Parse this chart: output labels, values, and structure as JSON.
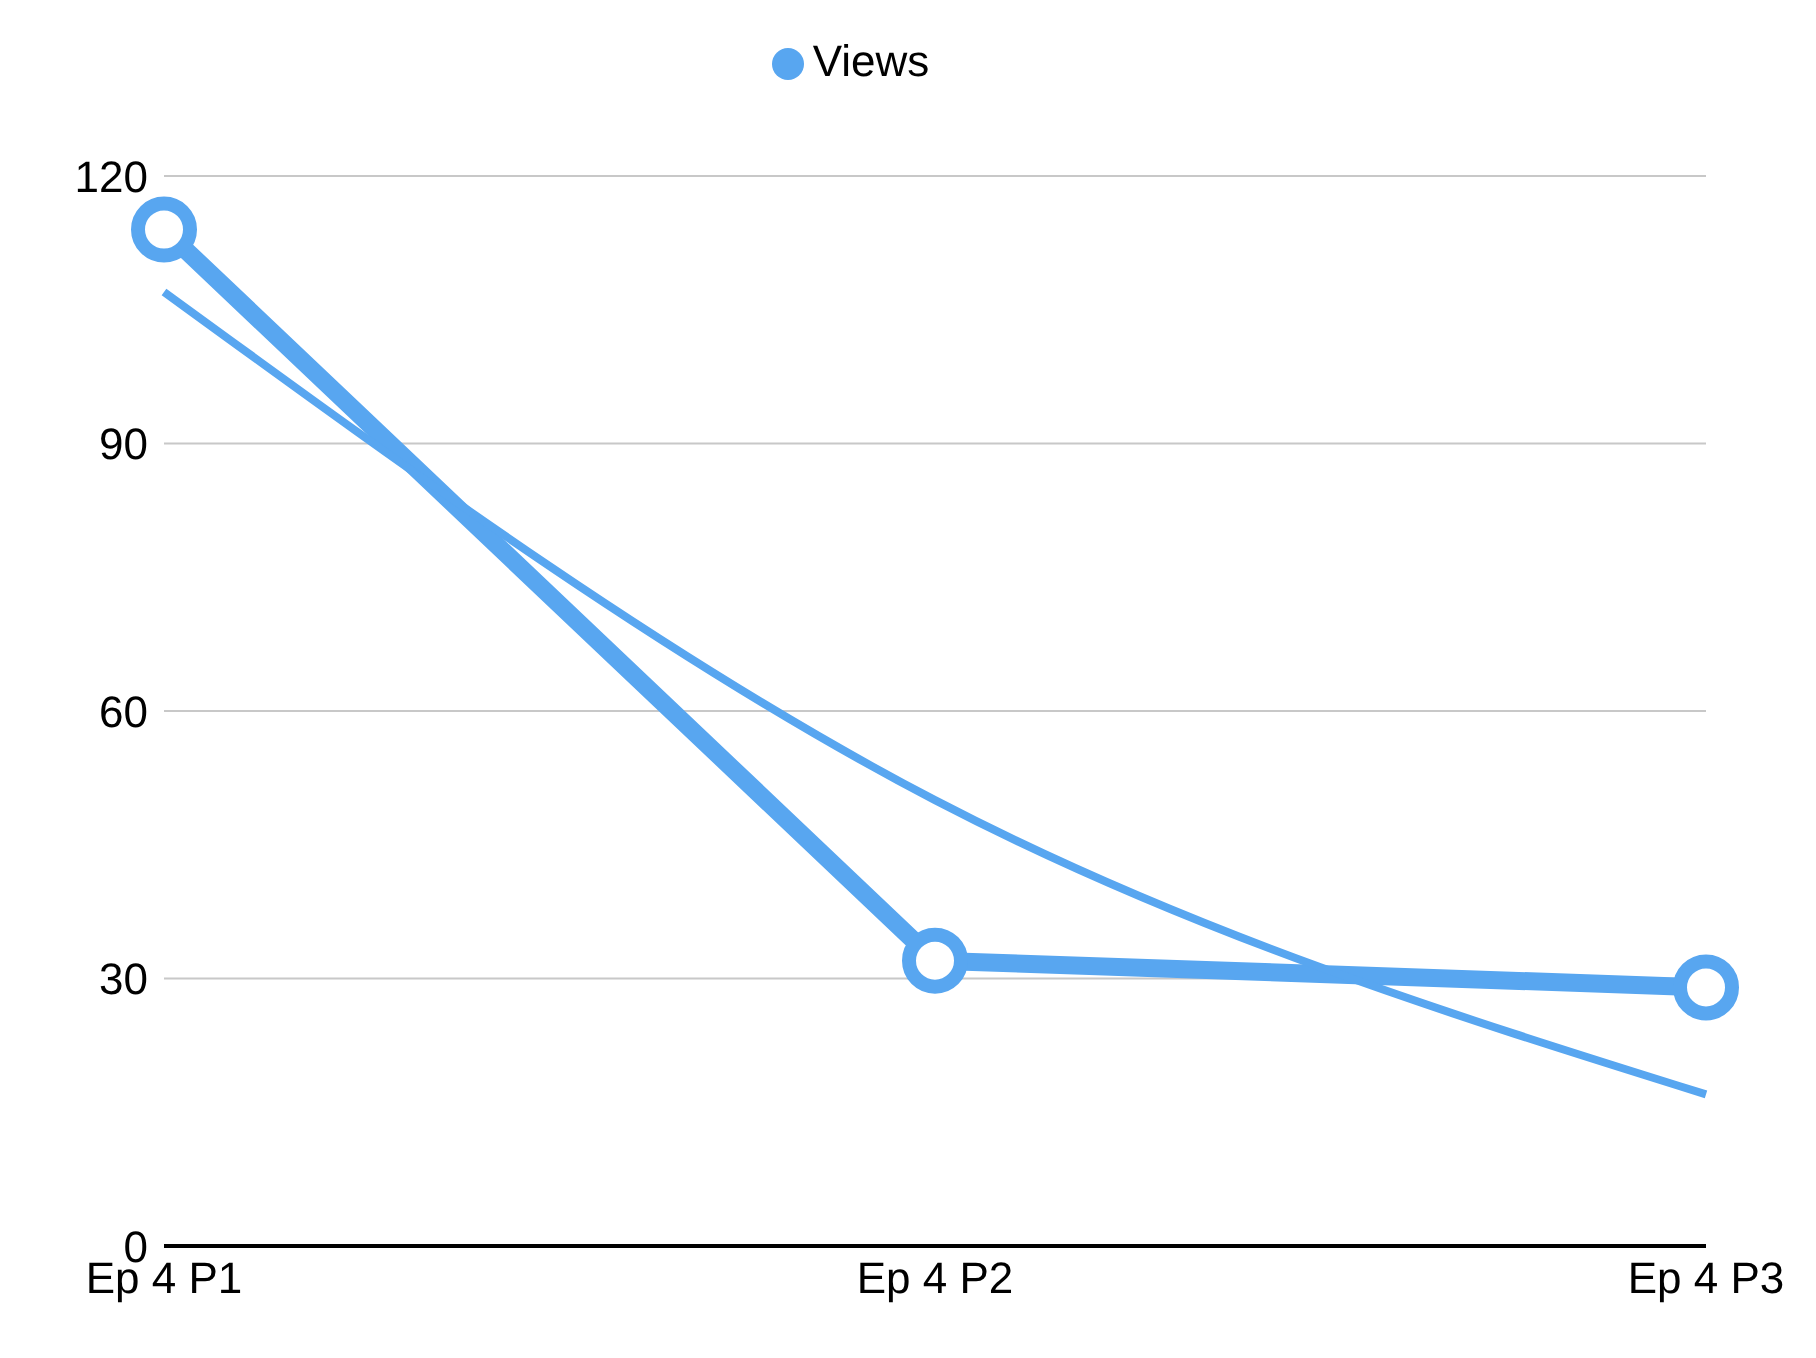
{
  "chart_data": {
    "type": "line",
    "categories": [
      "Ep 4 P1",
      "Ep 4 P2",
      "Ep 4 P3"
    ],
    "series": [
      {
        "name": "Views",
        "color": "#58a6f0",
        "values": [
          114,
          32,
          29
        ],
        "marker": "circle"
      },
      {
        "color": "#58a6f0",
        "values": [
          107,
          50,
          17
        ],
        "marker": "none"
      }
    ],
    "ylim": [
      0,
      120
    ],
    "yticks": [
      0,
      30,
      60,
      90,
      120
    ],
    "grid": "y",
    "legend": "top",
    "line_style": "solid"
  }
}
